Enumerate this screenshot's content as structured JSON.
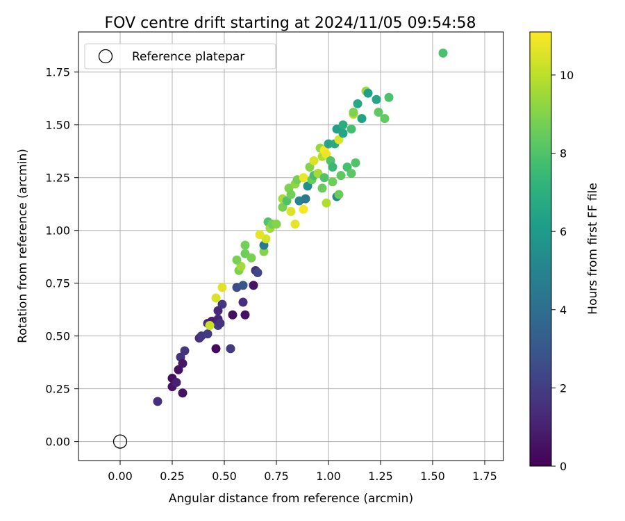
{
  "chart_data": {
    "type": "scatter",
    "title": "FOV centre drift starting at 2024/11/05 09:54:58",
    "xlabel": "Angular distance from reference (arcmin)",
    "ylabel": "Rotation from reference (arcmin)",
    "xlim": [
      -0.2,
      1.84
    ],
    "ylim": [
      -0.09,
      1.94
    ],
    "x_ticks": [
      0.0,
      0.25,
      0.5,
      0.75,
      1.0,
      1.25,
      1.5,
      1.75
    ],
    "x_tick_labels": [
      "0.00",
      "0.25",
      "0.50",
      "0.75",
      "1.00",
      "1.25",
      "1.50",
      "1.75"
    ],
    "y_ticks": [
      0.0,
      0.25,
      0.5,
      0.75,
      1.0,
      1.25,
      1.5,
      1.75
    ],
    "y_tick_labels": [
      "0.00",
      "0.25",
      "0.50",
      "0.75",
      "1.00",
      "1.25",
      "1.50",
      "1.75"
    ],
    "grid": true,
    "legend": {
      "placement": "top-left",
      "entries": [
        "Reference platepar"
      ]
    },
    "reference_point": {
      "x": 0.0,
      "y": 0.0
    },
    "colorbar": {
      "label": "Hours from first FF file",
      "min": 0,
      "max": 11.1,
      "ticks": [
        0,
        2,
        4,
        6,
        8,
        10
      ],
      "tick_labels": [
        "0",
        "2",
        "4",
        "6",
        "8",
        "10"
      ],
      "colormap": "viridis"
    },
    "points": [
      [
        0.18,
        0.19,
        1.5
      ],
      [
        0.25,
        0.26,
        0.6
      ],
      [
        0.25,
        0.3,
        0.4
      ],
      [
        0.27,
        0.28,
        1.0
      ],
      [
        0.28,
        0.34,
        0.5
      ],
      [
        0.29,
        0.4,
        1.6
      ],
      [
        0.3,
        0.37,
        0.7
      ],
      [
        0.3,
        0.23,
        0.5
      ],
      [
        0.31,
        0.43,
        1.7
      ],
      [
        0.38,
        0.49,
        1.4
      ],
      [
        0.39,
        0.5,
        1.8
      ],
      [
        0.42,
        0.56,
        1.3
      ],
      [
        0.42,
        0.51,
        1.9
      ],
      [
        0.44,
        0.57,
        0.9
      ],
      [
        0.46,
        0.44,
        0.3
      ],
      [
        0.47,
        0.55,
        2.0
      ],
      [
        0.47,
        0.58,
        1.1
      ],
      [
        0.47,
        0.62,
        1.2
      ],
      [
        0.48,
        0.56,
        1.6
      ],
      [
        0.49,
        0.65,
        1.8
      ],
      [
        0.53,
        0.44,
        1.9
      ],
      [
        0.54,
        0.6,
        0.4
      ],
      [
        0.56,
        0.73,
        2.5
      ],
      [
        0.59,
        0.74,
        3.0
      ],
      [
        0.59,
        0.66,
        1.4
      ],
      [
        0.6,
        0.6,
        0.5
      ],
      [
        0.64,
        0.74,
        0.6
      ],
      [
        0.65,
        0.81,
        1.5
      ],
      [
        0.66,
        0.8,
        2.3
      ],
      [
        0.57,
        0.81,
        8.9
      ],
      [
        0.58,
        0.83,
        9.5
      ],
      [
        0.56,
        0.86,
        8.8
      ],
      [
        0.6,
        0.89,
        8.6
      ],
      [
        0.6,
        0.93,
        8.7
      ],
      [
        0.63,
        0.87,
        8.8
      ],
      [
        0.46,
        0.68,
        10.5
      ],
      [
        0.49,
        0.73,
        10.6
      ],
      [
        0.43,
        0.55,
        10.2
      ],
      [
        0.69,
        0.9,
        9.0
      ],
      [
        0.69,
        0.93,
        4.5
      ],
      [
        0.7,
        0.96,
        10.4
      ],
      [
        0.67,
        0.98,
        10.7
      ],
      [
        0.71,
        1.04,
        8.0
      ],
      [
        0.72,
        1.01,
        9.5
      ],
      [
        0.73,
        1.03,
        8.7
      ],
      [
        0.75,
        1.03,
        9.0
      ],
      [
        0.78,
        1.11,
        8.8
      ],
      [
        0.78,
        1.15,
        9.6
      ],
      [
        0.8,
        1.14,
        8.0
      ],
      [
        0.81,
        1.2,
        8.9
      ],
      [
        0.82,
        1.17,
        8.7
      ],
      [
        0.82,
        1.09,
        10.5
      ],
      [
        0.84,
        1.03,
        10.7
      ],
      [
        0.84,
        1.22,
        9.2
      ],
      [
        0.85,
        1.24,
        8.7
      ],
      [
        0.86,
        1.14,
        5.0
      ],
      [
        0.88,
        1.1,
        11.0
      ],
      [
        0.88,
        1.25,
        10.8
      ],
      [
        0.89,
        1.15,
        4.5
      ],
      [
        0.9,
        1.21,
        5.5
      ],
      [
        0.91,
        1.3,
        9.0
      ],
      [
        0.92,
        1.24,
        8.5
      ],
      [
        0.93,
        1.26,
        7.8
      ],
      [
        0.93,
        1.33,
        10.5
      ],
      [
        0.95,
        1.27,
        9.6
      ],
      [
        0.96,
        1.39,
        9.3
      ],
      [
        0.97,
        1.35,
        9.8
      ],
      [
        0.97,
        1.2,
        8.5
      ],
      [
        0.98,
        1.38,
        11.0
      ],
      [
        0.98,
        1.25,
        8.0
      ],
      [
        0.99,
        1.36,
        10.8
      ],
      [
        0.99,
        1.13,
        9.8
      ],
      [
        1.0,
        1.41,
        6.5
      ],
      [
        1.01,
        1.33,
        8.0
      ],
      [
        1.02,
        1.3,
        7.5
      ],
      [
        1.02,
        1.23,
        8.6
      ],
      [
        1.03,
        1.41,
        6.7
      ],
      [
        1.04,
        1.48,
        6.3
      ],
      [
        1.04,
        1.16,
        5.3
      ],
      [
        1.05,
        1.17,
        8.5
      ],
      [
        1.05,
        1.43,
        10.5
      ],
      [
        1.06,
        1.26,
        8.3
      ],
      [
        1.07,
        1.46,
        6.5
      ],
      [
        1.07,
        1.5,
        6.9
      ],
      [
        1.09,
        1.3,
        7.8
      ],
      [
        1.11,
        1.48,
        7.8
      ],
      [
        1.11,
        1.27,
        8.2
      ],
      [
        1.12,
        1.55,
        9.8
      ],
      [
        1.12,
        1.56,
        8.9
      ],
      [
        1.13,
        1.32,
        8.0
      ],
      [
        1.14,
        1.6,
        6.6
      ],
      [
        1.16,
        1.53,
        6.4
      ],
      [
        1.18,
        1.66,
        9.4
      ],
      [
        1.19,
        1.65,
        6.2
      ],
      [
        1.23,
        1.62,
        6.5
      ],
      [
        1.24,
        1.56,
        8.3
      ],
      [
        1.27,
        1.53,
        8.4
      ],
      [
        1.29,
        1.63,
        7.9
      ],
      [
        1.55,
        1.84,
        7.9
      ]
    ]
  }
}
